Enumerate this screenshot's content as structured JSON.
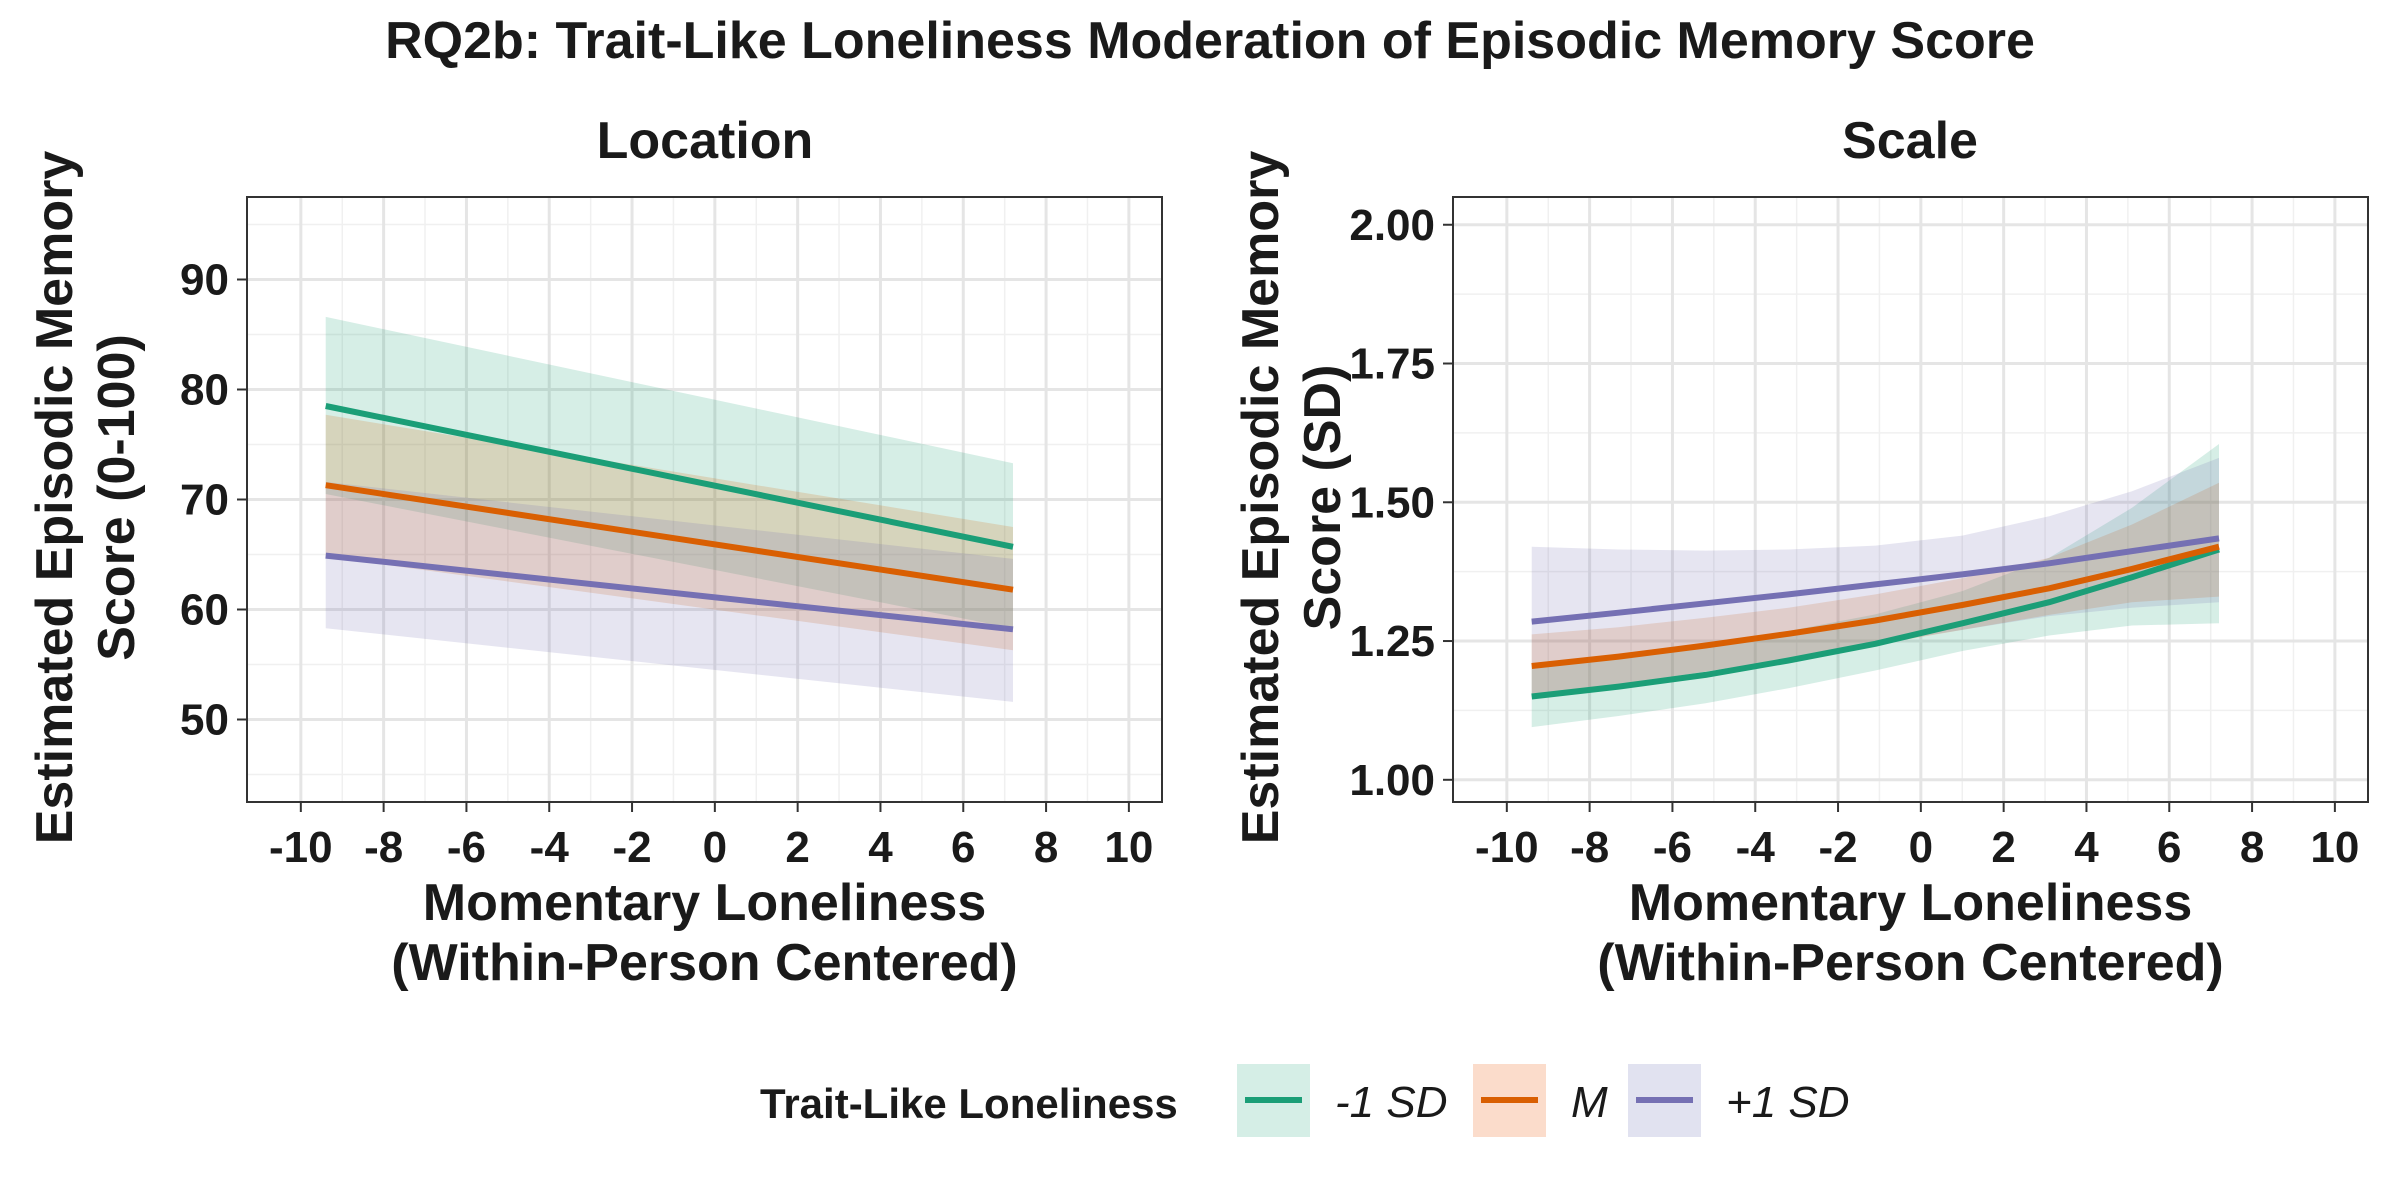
{
  "figure": {
    "title": "RQ2b: Trait-Like Loneliness Moderation of Episodic Memory Score"
  },
  "legend": {
    "title": "Trait-Like Loneliness",
    "entries": [
      {
        "label": "-1 SD",
        "color": "#1b9e77",
        "fill": "#d5eee6"
      },
      {
        "label": "M",
        "color": "#d95f02",
        "fill": "#fbdccb"
      },
      {
        "label": "+1 SD",
        "color": "#7570b3",
        "fill": "#e1e2f0"
      }
    ]
  },
  "chart_data": [
    {
      "type": "line",
      "title": "Location",
      "xlabel": "Momentary Loneliness\n(Within-Person Centered)",
      "ylabel": "Estimated Episodic Memory\nScore (0-100)",
      "xlim": [
        -11.3,
        10.8
      ],
      "ylim": [
        42.5,
        97.5
      ],
      "xticks": [
        -10,
        -8,
        -6,
        -4,
        -2,
        0,
        2,
        4,
        6,
        8,
        10
      ],
      "xtick_labels": [
        "-10",
        "-8",
        "-6",
        "-4",
        "-2",
        "0",
        "2",
        "4",
        "6",
        "8",
        "10"
      ],
      "yticks": [
        50,
        60,
        70,
        80,
        90
      ],
      "ytick_labels": [
        "50",
        "60",
        "70",
        "80",
        "90"
      ],
      "grid": true,
      "legend_position": "bottom",
      "series": [
        {
          "name": "-1 SD",
          "color": "#1b9e77",
          "x": [
            -9.4,
            7.2
          ],
          "y": [
            78.5,
            65.7
          ],
          "lower": [
            70.5,
            58.3
          ],
          "upper": [
            86.6,
            73.3
          ]
        },
        {
          "name": "M",
          "color": "#d95f02",
          "x": [
            -9.4,
            7.2
          ],
          "y": [
            71.3,
            61.8
          ],
          "lower": [
            64.8,
            56.3
          ],
          "upper": [
            77.7,
            67.5
          ]
        },
        {
          "name": "+1 SD",
          "color": "#7570b3",
          "x": [
            -9.4,
            7.2
          ],
          "y": [
            64.9,
            58.2
          ],
          "lower": [
            58.3,
            51.6
          ],
          "upper": [
            71.6,
            64.6
          ]
        }
      ]
    },
    {
      "type": "line",
      "title": "Scale",
      "xlabel": "Momentary Loneliness\n(Within-Person Centered)",
      "ylabel": "Estimated Episodic Memory\nScore (SD)",
      "xlim": [
        -11.3,
        10.8
      ],
      "ylim": [
        0.96,
        2.05
      ],
      "xticks": [
        -10,
        -8,
        -6,
        -4,
        -2,
        0,
        2,
        4,
        6,
        8,
        10
      ],
      "xtick_labels": [
        "-10",
        "-8",
        "-6",
        "-4",
        "-2",
        "0",
        "2",
        "4",
        "6",
        "8",
        "10"
      ],
      "yticks": [
        1.0,
        1.25,
        1.5,
        1.75,
        2.0
      ],
      "ytick_labels": [
        "1.00",
        "1.25",
        "1.50",
        "1.75",
        "2.00"
      ],
      "grid": true,
      "legend_position": "bottom",
      "series": [
        {
          "name": "-1 SD",
          "color": "#1b9e77",
          "x": [
            -9.4,
            -7.3,
            -5.2,
            -3.2,
            -1.1,
            1.0,
            3.1,
            5.1,
            7.2
          ],
          "y": [
            1.15,
            1.168,
            1.189,
            1.215,
            1.245,
            1.282,
            1.32,
            1.365,
            1.415
          ],
          "lower": [
            1.095,
            1.115,
            1.138,
            1.165,
            1.197,
            1.232,
            1.26,
            1.278,
            1.282
          ],
          "upper": [
            1.205,
            1.222,
            1.243,
            1.268,
            1.298,
            1.34,
            1.4,
            1.49,
            1.605
          ]
        },
        {
          "name": "M",
          "color": "#d95f02",
          "x": [
            -9.4,
            -7.3,
            -5.2,
            -3.2,
            -1.1,
            1.0,
            3.1,
            5.1,
            7.2
          ],
          "y": [
            1.205,
            1.222,
            1.242,
            1.263,
            1.287,
            1.315,
            1.345,
            1.38,
            1.42
          ],
          "lower": [
            1.15,
            1.172,
            1.195,
            1.218,
            1.243,
            1.27,
            1.297,
            1.32,
            1.33
          ],
          "upper": [
            1.262,
            1.275,
            1.292,
            1.31,
            1.334,
            1.363,
            1.4,
            1.46,
            1.535
          ]
        },
        {
          "name": "+1 SD",
          "color": "#7570b3",
          "x": [
            -9.4,
            -7.3,
            -5.2,
            -3.2,
            -1.1,
            1.0,
            3.1,
            5.1,
            7.2
          ],
          "y": [
            1.285,
            1.301,
            1.318,
            1.334,
            1.352,
            1.37,
            1.39,
            1.412,
            1.435
          ],
          "lower": [
            1.15,
            1.172,
            1.195,
            1.218,
            1.245,
            1.27,
            1.295,
            1.31,
            1.32
          ],
          "upper": [
            1.42,
            1.415,
            1.413,
            1.415,
            1.422,
            1.44,
            1.475,
            1.52,
            1.58
          ]
        }
      ]
    }
  ]
}
